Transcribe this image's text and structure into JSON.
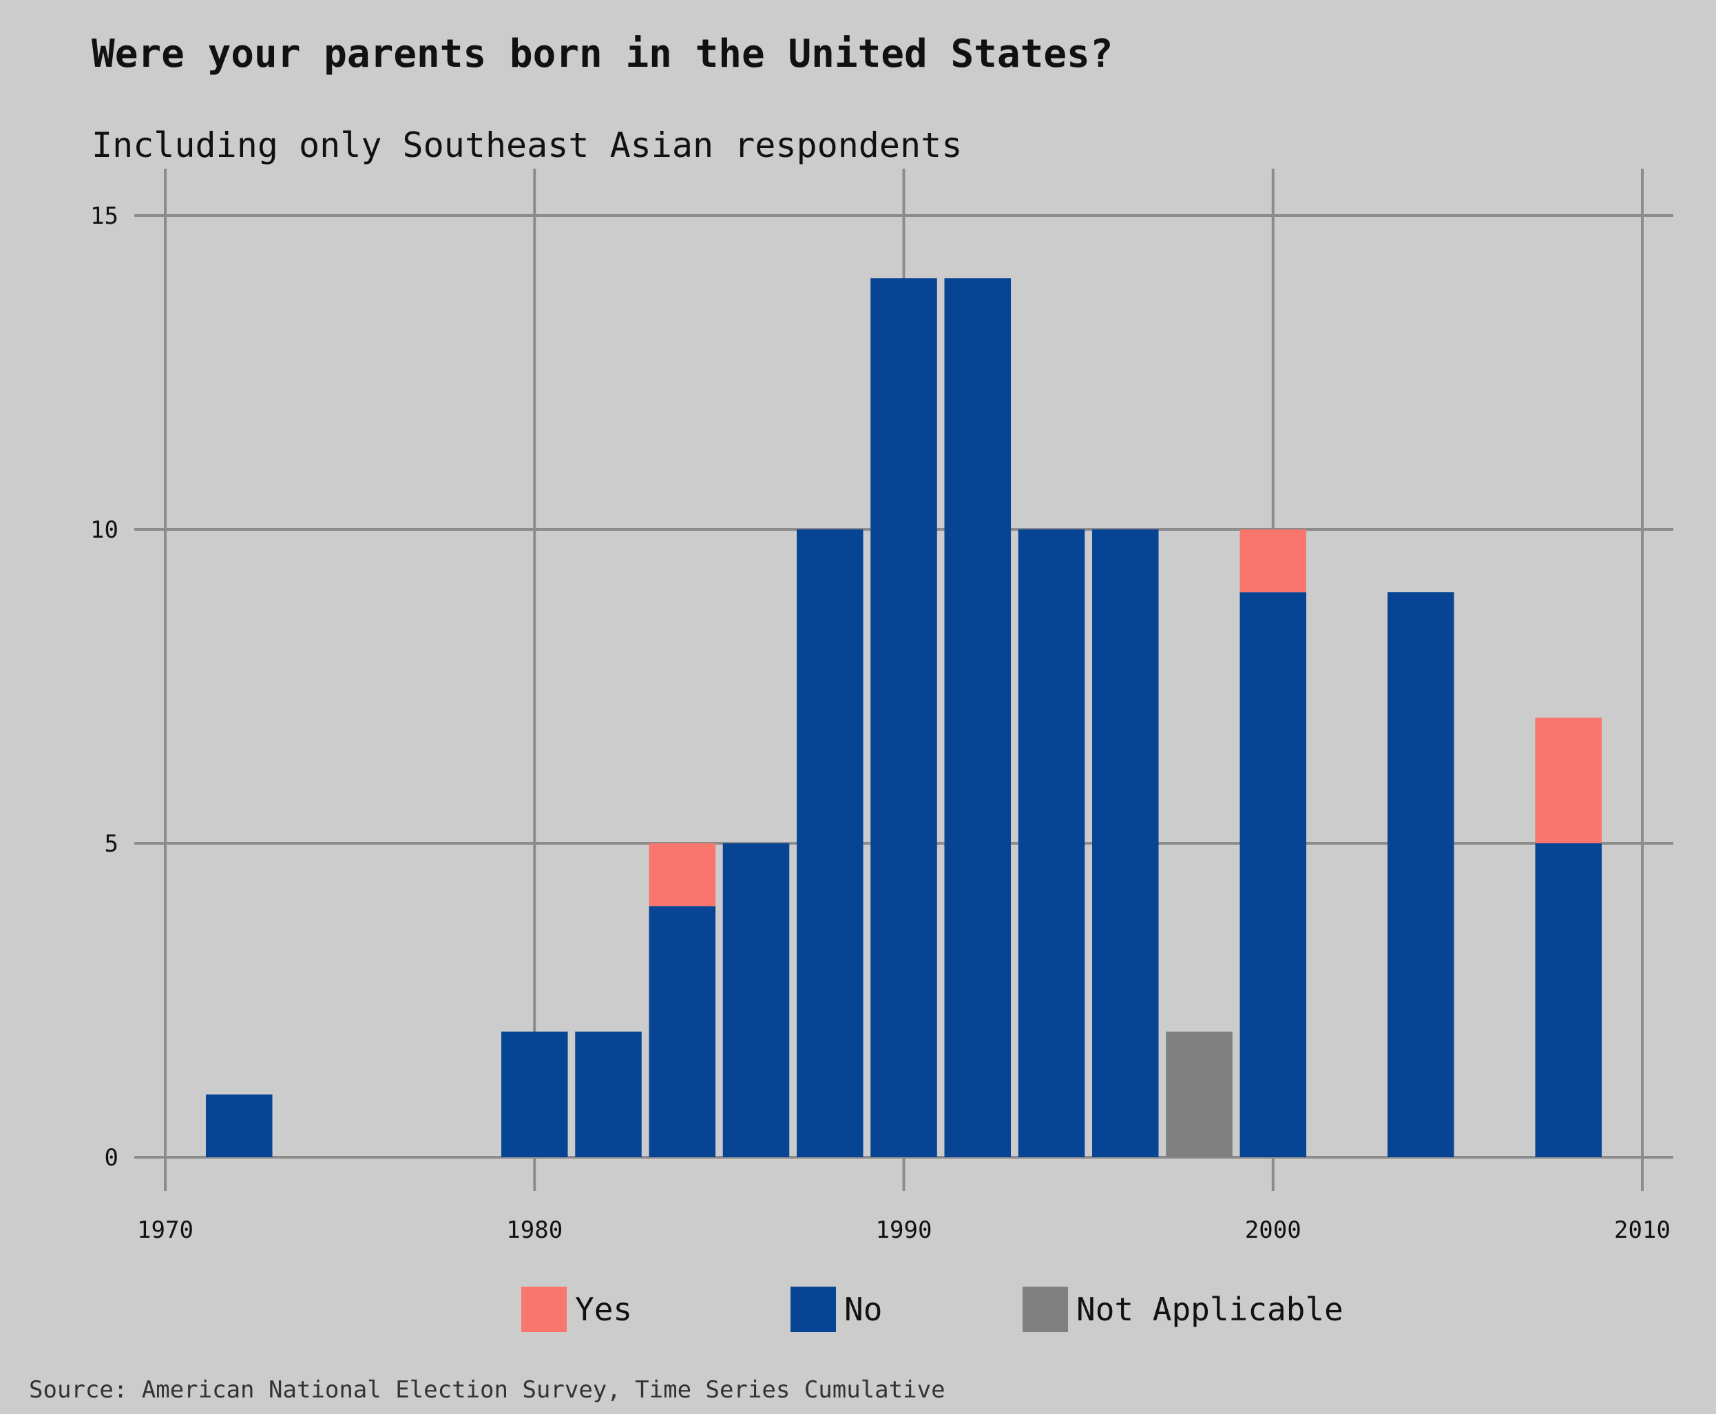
{
  "chart_data": {
    "type": "bar",
    "stacked": true,
    "title": "Were your parents born in the United States?",
    "subtitle": "Including only Southeast Asian respondents",
    "source": "Source: American National Election Survey, Time Series Cumulative",
    "x": [
      1972,
      1980,
      1982,
      1984,
      1986,
      1988,
      1990,
      1992,
      1994,
      1996,
      1998,
      2000,
      2004,
      2008
    ],
    "series": [
      {
        "name": "No",
        "color": "#074494",
        "values": [
          1,
          2,
          2,
          4,
          5,
          10,
          14,
          14,
          10,
          10,
          0,
          9,
          9,
          5
        ]
      },
      {
        "name": "Yes",
        "color": "#f8766d",
        "values": [
          0,
          0,
          0,
          1,
          0,
          0,
          0,
          0,
          0,
          0,
          0,
          1,
          0,
          2
        ]
      },
      {
        "name": "Not Applicable",
        "color": "#808080",
        "values": [
          0,
          0,
          0,
          0,
          0,
          0,
          0,
          0,
          0,
          0,
          2,
          0,
          0,
          0
        ]
      }
    ],
    "xlim": [
      1969,
      2011
    ],
    "ylim": [
      0,
      15
    ],
    "xticks": [
      "1970",
      "1980",
      "1990",
      "2000",
      "2010"
    ],
    "yticks": [
      "0",
      "5",
      "10",
      "15"
    ],
    "bar_width_years": 1.8,
    "grid": true,
    "legend": {
      "position": "bottom",
      "items": [
        {
          "label": "Yes",
          "color": "#f8766d"
        },
        {
          "label": "No",
          "color": "#074494"
        },
        {
          "label": "Not Applicable",
          "color": "#808080"
        }
      ]
    },
    "background": "#cbcccb",
    "grid_color": "#8c8c8c"
  }
}
